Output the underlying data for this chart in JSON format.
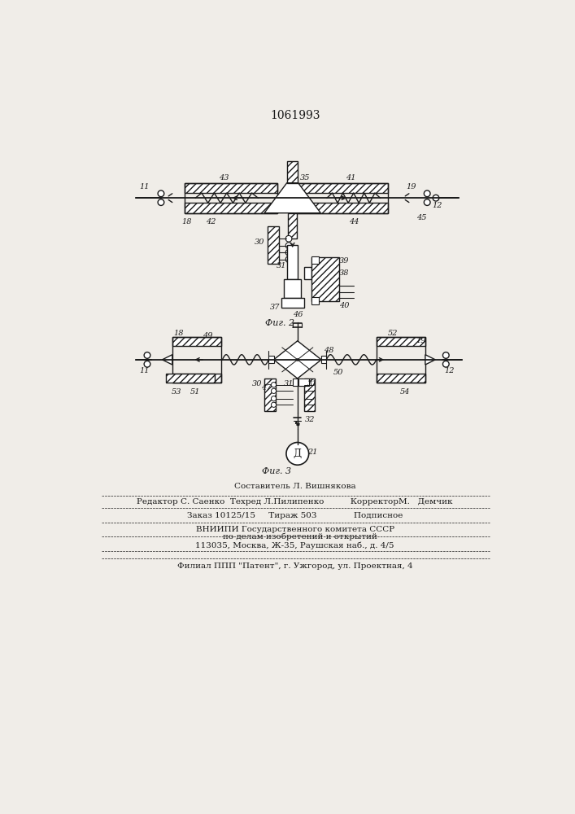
{
  "title": "1061993",
  "bg_color": "#f0ede8",
  "line_color": "#1a1a1a",
  "fig2_caption": "Фиг. 2",
  "fig3_caption": "Фиг. 3",
  "footer_lines": [
    "Составитель Л. Вишнякова",
    "Редактор С. Саенко  Техред Л.Пилипенко          КорректорМ.   Демчик",
    "Заказ 10125/15     Тираж 503              Подписное",
    "ВНИИПИ Государственного комитета СССР",
    "    по делам изобретений и открытий",
    "113035, Москва, Ж-35, Раушская наб., д. 4/5",
    "Филиал ППП \"Патент\", г. Ужгород, ул. Проектная, 4"
  ]
}
